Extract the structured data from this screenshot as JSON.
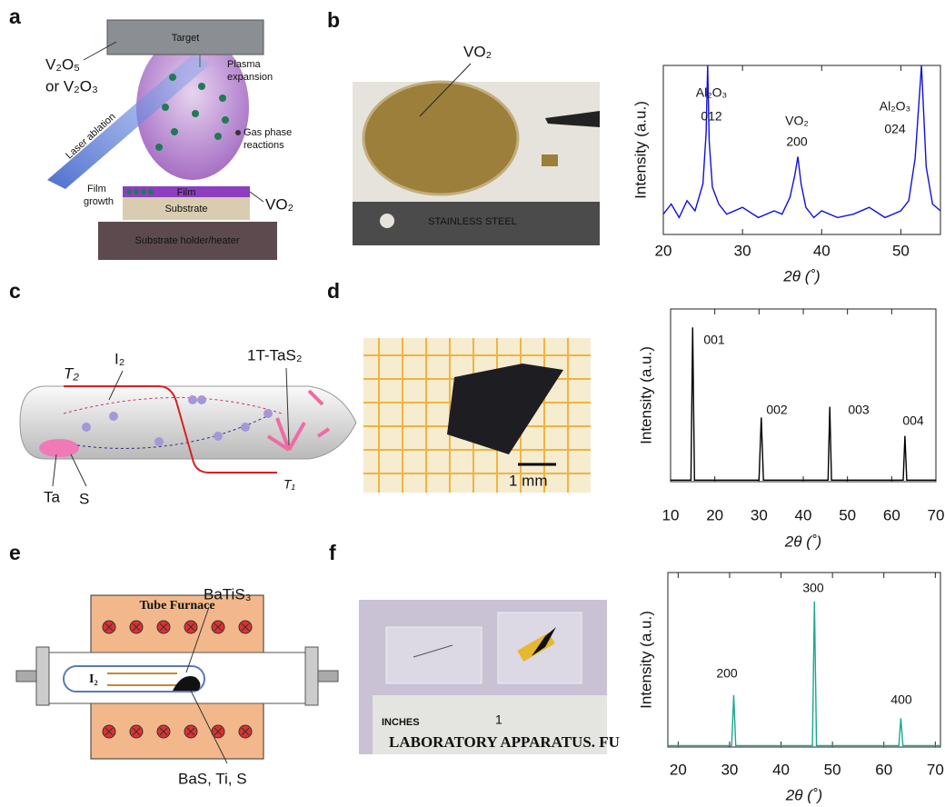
{
  "panel_labels": [
    "a",
    "b",
    "c",
    "d",
    "e",
    "f"
  ],
  "schematic_a": {
    "target": "Target",
    "source_1": "V₂O₅",
    "source_2": "or V₂O₃",
    "laser": "Laser ablation",
    "plasma_1": "Plasma",
    "plasma_2": "expansion",
    "gas_1": "Gas phase",
    "gas_2": "reactions",
    "film": "Film",
    "growth_1": "Film",
    "growth_2": "growth",
    "substrate": "Substrate",
    "holder": "Substrate holder/heater",
    "product": "VO₂"
  },
  "photo_b": {
    "label": "VO₂",
    "ruler": "STAINLESS STEEL"
  },
  "schematic_c": {
    "iodine": "I₂",
    "product": "1T-TaS₂",
    "t2": "T₂",
    "t1": "T₁",
    "ta": "Ta",
    "s": "S"
  },
  "photo_d": {
    "scale_bar": "1 mm"
  },
  "schematic_e": {
    "furnace": "Tube Furnace",
    "product": "BaTiS₃",
    "iodine": "I₂",
    "reactants": "BaS, Ti, S"
  },
  "photo_f": {
    "ruler_unit": "INCHES",
    "ruler_mark": "1",
    "ruler_brand": "LABORATORY APPARATUS. FU"
  },
  "chart_data": [
    {
      "type": "line",
      "x_label": "2θ (˚)",
      "y_label": "Intensity (a.u.)",
      "color": "#1010e0",
      "x": [
        20,
        21,
        22,
        23,
        24,
        25,
        25.4,
        25.6,
        25.8,
        26.2,
        27,
        28,
        30,
        32,
        34,
        35,
        36,
        36.6,
        37,
        37.4,
        38,
        39,
        40,
        42,
        44,
        46,
        48,
        50,
        51,
        51.8,
        52.6,
        53.2,
        54,
        55
      ],
      "values": [
        0.12,
        0.18,
        0.1,
        0.2,
        0.14,
        0.3,
        0.6,
        1.0,
        0.55,
        0.28,
        0.18,
        0.12,
        0.16,
        0.1,
        0.14,
        0.12,
        0.22,
        0.35,
        0.46,
        0.3,
        0.16,
        0.1,
        0.14,
        0.1,
        0.12,
        0.16,
        0.1,
        0.14,
        0.2,
        0.45,
        1.0,
        0.4,
        0.18,
        0.14
      ],
      "xlim": [
        20,
        55
      ],
      "xticks": [
        20,
        30,
        40,
        50
      ],
      "ylim": [
        0,
        1
      ],
      "annotations": [
        "Al₂O₃",
        "012",
        "VO₂",
        "200",
        "Al₂O₃",
        "024"
      ]
    },
    {
      "type": "line",
      "x_label": "2θ (˚)",
      "y_label": "Intensity (a.u.)",
      "color": "#000000",
      "x": [
        10,
        14.6,
        15,
        15.4,
        30,
        30.5,
        31,
        45.6,
        46,
        46.4,
        62.6,
        63,
        63.4,
        70
      ],
      "values": [
        0,
        0,
        1,
        0,
        0,
        0.41,
        0,
        0,
        0.48,
        0,
        0,
        0.29,
        0,
        0
      ],
      "xlim": [
        10,
        70
      ],
      "xticks": [
        10,
        20,
        30,
        40,
        50,
        60,
        70
      ],
      "ylim": [
        -0.01,
        1.12
      ],
      "annotations": [
        "001",
        "002",
        "003",
        "004"
      ]
    },
    {
      "type": "line",
      "x_label": "2θ (˚)",
      "y_label": "Intensity (a.u.)",
      "color": "#1aa88e",
      "x": [
        18,
        30.4,
        30.8,
        31.2,
        46.1,
        46.5,
        46.9,
        62.9,
        63.3,
        63.7,
        71
      ],
      "values": [
        0,
        0,
        0.35,
        0,
        0,
        1,
        0,
        0,
        0.19,
        0,
        0
      ],
      "xlim": [
        18,
        71
      ],
      "xticks": [
        20,
        30,
        40,
        50,
        60,
        70
      ],
      "ylim": [
        -0.01,
        1.2
      ],
      "annotations": [
        "200",
        "300",
        "400"
      ]
    }
  ]
}
